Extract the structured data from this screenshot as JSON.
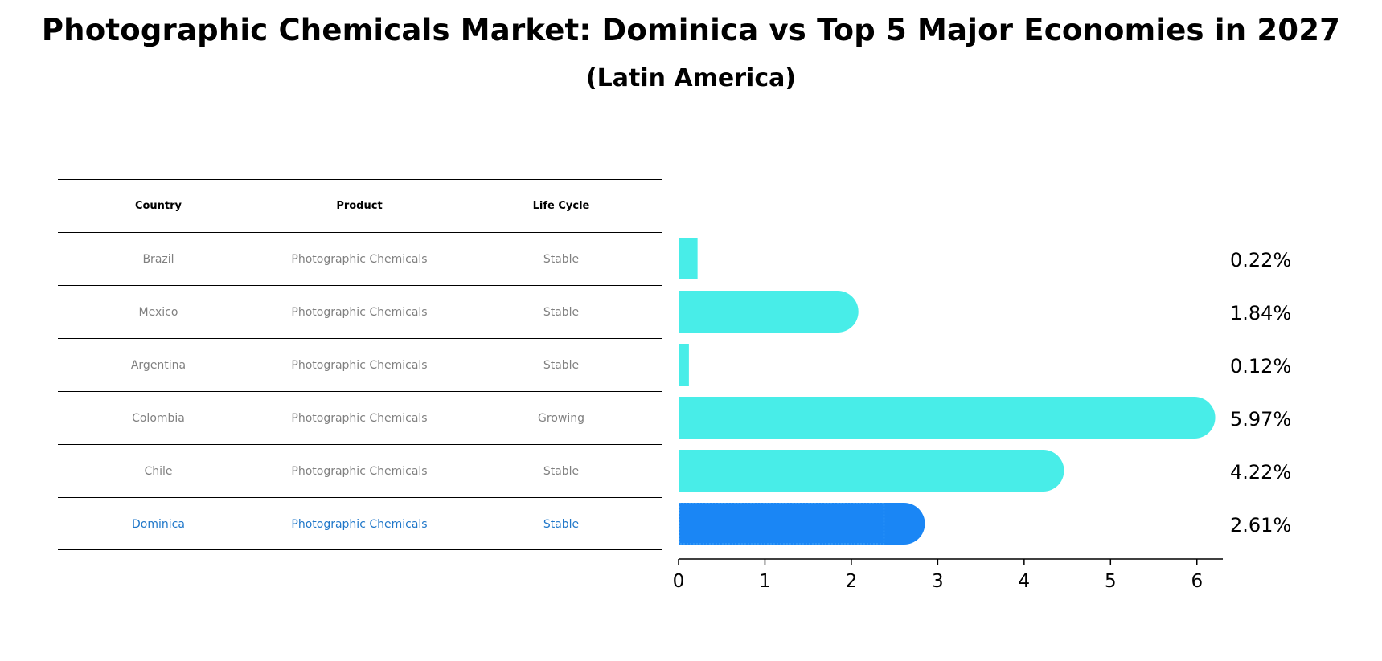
{
  "chart_data": {
    "type": "bar",
    "orientation": "horizontal",
    "title": "Photographic Chemicals Market: Dominica vs Top 5 Major Economies in 2027",
    "subtitle": "(Latin America)",
    "table": {
      "headers": [
        "Country",
        "Product",
        "Life Cycle"
      ],
      "rows": [
        [
          "Brazil",
          "Photographic Chemicals",
          "Stable"
        ],
        [
          "Mexico",
          "Photographic Chemicals",
          "Stable"
        ],
        [
          "Argentina",
          "Photographic Chemicals",
          "Stable"
        ],
        [
          "Colombia",
          "Photographic Chemicals",
          "Growing"
        ],
        [
          "Chile",
          "Photographic Chemicals",
          "Stable"
        ],
        [
          "Dominica",
          "Photographic Chemicals",
          "Stable"
        ]
      ],
      "highlight_row": 5
    },
    "categories": [
      "Brazil",
      "Mexico",
      "Argentina",
      "Colombia",
      "Chile",
      "Dominica"
    ],
    "values": [
      0.22,
      1.84,
      0.12,
      5.97,
      4.22,
      2.61
    ],
    "value_labels": [
      "0.22%",
      "1.84%",
      "0.12%",
      "5.97%",
      "4.22%",
      "2.61%"
    ],
    "xlim": [
      0,
      6.3
    ],
    "xticks": [
      "0",
      "1",
      "2",
      "3",
      "4",
      "5",
      "6"
    ],
    "grid": false,
    "colors": {
      "bar": "#48ede8",
      "highlight": "#1a86f5",
      "highlight_text": "#1f77c9"
    }
  }
}
